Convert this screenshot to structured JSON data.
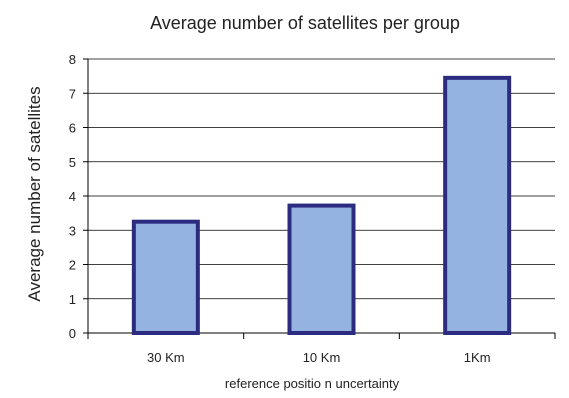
{
  "chart_data": {
    "type": "bar",
    "title": "Average number of satellites per group",
    "xlabel": "reference positio n uncertainty",
    "ylabel": "Average number of satellites",
    "categories": [
      "30 Km",
      "10 Km",
      "1Km"
    ],
    "values": [
      3.25,
      3.72,
      7.45
    ],
    "ylim": [
      0,
      8
    ],
    "yticks": [
      0,
      1,
      2,
      3,
      4,
      5,
      6,
      7,
      8
    ],
    "grid": true,
    "colors": {
      "bar_fill": "#95b3e0",
      "bar_stroke": "#2b2b80",
      "grid": "#000000"
    }
  }
}
